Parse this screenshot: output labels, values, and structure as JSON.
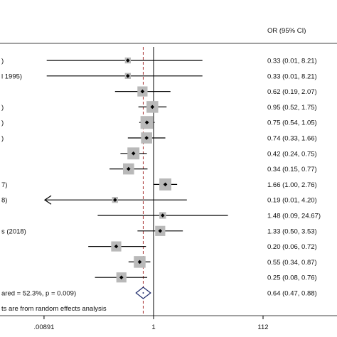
{
  "chart_data": {
    "type": "forest",
    "header_or": "OR (95% CI)",
    "scale": "log",
    "xlim": [
      0.00891,
      112
    ],
    "xticks": [
      {
        "value": 0.00891,
        "label": ".00891"
      },
      {
        "value": 1,
        "label": "1"
      },
      {
        "value": 112,
        "label": "112"
      }
    ],
    "null_value": 1,
    "pooled_line_value": 0.64,
    "studies": [
      {
        "label": ")",
        "or": 0.33,
        "lo": 0.01,
        "hi": 8.21,
        "ci_text": "0.33 (0.01, 8.21)",
        "weight": 0.6
      },
      {
        "label": "l 1995)",
        "or": 0.33,
        "lo": 0.01,
        "hi": 8.21,
        "ci_text": "0.33 (0.01, 8.21)",
        "weight": 0.6
      },
      {
        "label": "",
        "or": 0.62,
        "lo": 0.19,
        "hi": 2.07,
        "ci_text": "0.62 (0.19, 2.07)",
        "weight": 4.5
      },
      {
        "label": ")",
        "or": 0.95,
        "lo": 0.52,
        "hi": 1.75,
        "ci_text": "0.95 (0.52, 1.75)",
        "weight": 7.0
      },
      {
        "label": ")",
        "or": 0.75,
        "lo": 0.54,
        "hi": 1.05,
        "ci_text": "0.75 (0.54, 1.05)",
        "weight": 9.0
      },
      {
        "label": ")",
        "or": 0.74,
        "lo": 0.33,
        "hi": 1.66,
        "ci_text": "0.74 (0.33, 1.66)",
        "weight": 6.0
      },
      {
        "label": "",
        "or": 0.42,
        "lo": 0.24,
        "hi": 0.75,
        "ci_text": "0.42 (0.24, 0.75)",
        "weight": 7.5
      },
      {
        "label": "",
        "or": 0.34,
        "lo": 0.15,
        "hi": 0.77,
        "ci_text": "0.34 (0.15, 0.77)",
        "weight": 6.0
      },
      {
        "label": "7)",
        "or": 1.66,
        "lo": 1.0,
        "hi": 2.76,
        "ci_text": "1.66 (1.00, 2.76)",
        "weight": 7.5
      },
      {
        "label": "8)",
        "or": 0.19,
        "lo": 0.01,
        "hi": 4.2,
        "ci_text": "0.19 (0.01, 4.20)",
        "weight": 0.6,
        "arrow_left": true
      },
      {
        "label": "",
        "or": 1.48,
        "lo": 0.09,
        "hi": 24.67,
        "ci_text": "1.48 (0.09, 24.67)",
        "weight": 1.0
      },
      {
        "label": "s (2018)",
        "or": 1.33,
        "lo": 0.5,
        "hi": 3.53,
        "ci_text": "1.33 (0.50, 3.53)",
        "weight": 4.5
      },
      {
        "label": "",
        "or": 0.2,
        "lo": 0.06,
        "hi": 0.72,
        "ci_text": "0.20 (0.06, 0.72)",
        "weight": 4.5
      },
      {
        "label": "",
        "or": 0.55,
        "lo": 0.34,
        "hi": 0.87,
        "ci_text": "0.55 (0.34, 0.87)",
        "weight": 7.0
      },
      {
        "label": "",
        "or": 0.25,
        "lo": 0.08,
        "hi": 0.76,
        "ci_text": "0.25 (0.08, 0.76)",
        "weight": 4.5
      }
    ],
    "overall": {
      "label": "ared = 52.3%, p = 0.009)",
      "or": 0.64,
      "lo": 0.47,
      "hi": 0.88,
      "ci_text": "0.64 (0.47, 0.88)"
    },
    "footnote": "ts are from random effects analysis",
    "colors": {
      "ci_line": "#000000",
      "box": "#b9b9b9",
      "point": "#000000",
      "null_line": "#000000",
      "pooled_line": "#a52a2a",
      "diamond": "#1d2a6b",
      "axis": "#000000"
    }
  }
}
